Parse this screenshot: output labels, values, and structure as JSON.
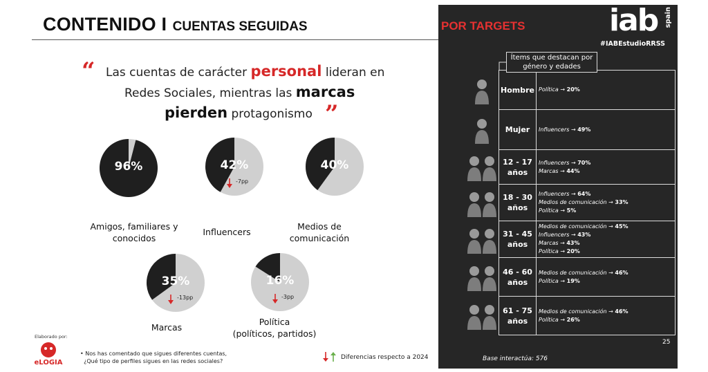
{
  "title": {
    "big": "CONTENIDO I",
    "small": "CUENTAS SEGUIDAS"
  },
  "quote": {
    "line1_a": "Las cuentas de carácter ",
    "line1_red": "personal",
    "line1_b": " lideran en",
    "line2_a": "Redes Sociales, mientras las ",
    "line2_bold": "marcas",
    "line3_bold": "pierden",
    "line3_b": " protagonismo",
    "open_mark": "“",
    "close_mark": "”"
  },
  "pies": [
    {
      "pct_label": "96%",
      "value": 0.96,
      "label_lines": [
        "Amigos, familiares y",
        "conocidos"
      ],
      "delta": ""
    },
    {
      "pct_label": "42%",
      "value": 0.42,
      "label_lines": [
        "Influencers"
      ],
      "delta": "-7pp"
    },
    {
      "pct_label": "40%",
      "value": 0.4,
      "label_lines": [
        "Medios de",
        "comunicación"
      ],
      "delta": ""
    },
    {
      "pct_label": "35%",
      "value": 0.35,
      "label_lines": [
        "Marcas"
      ],
      "delta": "-13pp"
    },
    {
      "pct_label": "16%",
      "value": 0.16,
      "label_lines": [
        "Política",
        "(políticos, partidos)"
      ],
      "delta": "-3pp"
    }
  ],
  "colors": {
    "accent_red": "#d62828",
    "pie_dark": "#1f1f1f",
    "pie_light": "#d0d0d0",
    "panel_bg": "#262626"
  },
  "footer": {
    "made_by": "Elaborado por:",
    "logo_text": "eLOGIA",
    "note_line1": "Nos has comentado que sigues diferentes cuentas,",
    "note_line2": "¿Qué tipo de perfiles sigues en las redes sociales?",
    "legend": "Diferencias respecto a 2024"
  },
  "panel": {
    "title": "POR TARGETS",
    "brand": "iab",
    "brand_sub": "spain",
    "hashtag": "#IABEstudioRRSS",
    "callout_line1": "Ítems que destacan por",
    "callout_line2": "género y edades",
    "rows": [
      {
        "cat1": "Hombre",
        "cat2": "",
        "items": [
          {
            "name": "Política",
            "val": "20%"
          }
        ]
      },
      {
        "cat1": "Mujer",
        "cat2": "",
        "items": [
          {
            "name": "Influencers",
            "val": "49%"
          }
        ]
      },
      {
        "cat1": "12 - 17",
        "cat2": "años",
        "items": [
          {
            "name": "Influencers",
            "val": "70%"
          },
          {
            "name": "Marcas",
            "val": "44%"
          }
        ]
      },
      {
        "cat1": "18 - 30",
        "cat2": "años",
        "items": [
          {
            "name": "Influencers",
            "val": "64%"
          },
          {
            "name": "Medios de comunicación",
            "val": "33%"
          },
          {
            "name": "Política",
            "val": "5%"
          }
        ]
      },
      {
        "cat1": "31 - 45",
        "cat2": "años",
        "items": [
          {
            "name": "Medios de comunicación",
            "val": "45%"
          },
          {
            "name": "Influencers",
            "val": "43%"
          },
          {
            "name": "Marcas",
            "val": "43%"
          },
          {
            "name": "Política",
            "val": "20%"
          }
        ]
      },
      {
        "cat1": "46 - 60",
        "cat2": "años",
        "items": [
          {
            "name": "Medios de comunicación",
            "val": "46%"
          },
          {
            "name": "Política",
            "val": "19%"
          }
        ]
      },
      {
        "cat1": "61 - 75",
        "cat2": "años",
        "items": [
          {
            "name": "Medios de comunicación",
            "val": "46%"
          },
          {
            "name": "Política",
            "val": "26%"
          }
        ]
      }
    ],
    "arrow_glyph": "→",
    "page_number": "25",
    "base": "Base interactúa: 576"
  }
}
